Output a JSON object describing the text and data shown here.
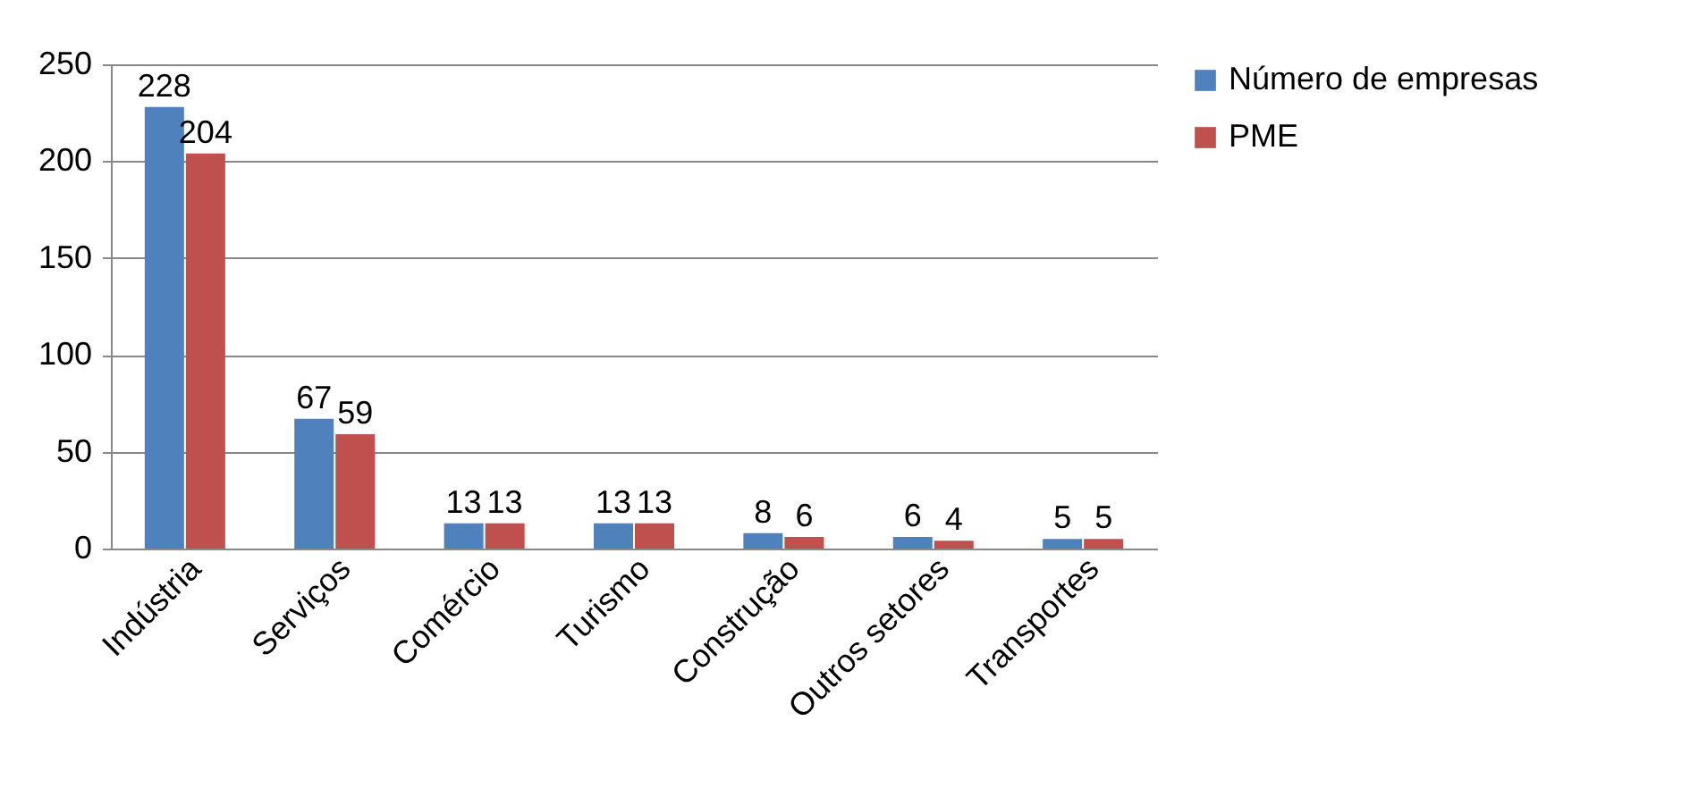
{
  "chart_data": {
    "type": "bar",
    "categories": [
      "Indústria",
      "Serviços",
      "Comércio",
      "Turismo",
      "Construção",
      "Outros setores",
      "Transportes"
    ],
    "series": [
      {
        "name": "Número de empresas",
        "color": "#4f81bd",
        "values": [
          228,
          67,
          13,
          13,
          8,
          6,
          5
        ]
      },
      {
        "name": "PME",
        "color": "#c0504d",
        "values": [
          204,
          59,
          13,
          13,
          6,
          4,
          5
        ]
      }
    ],
    "ylim": [
      0,
      250
    ],
    "yticks": [
      0,
      50,
      100,
      150,
      200,
      250
    ],
    "grid": "y",
    "legend": "right",
    "data_labels": true
  }
}
